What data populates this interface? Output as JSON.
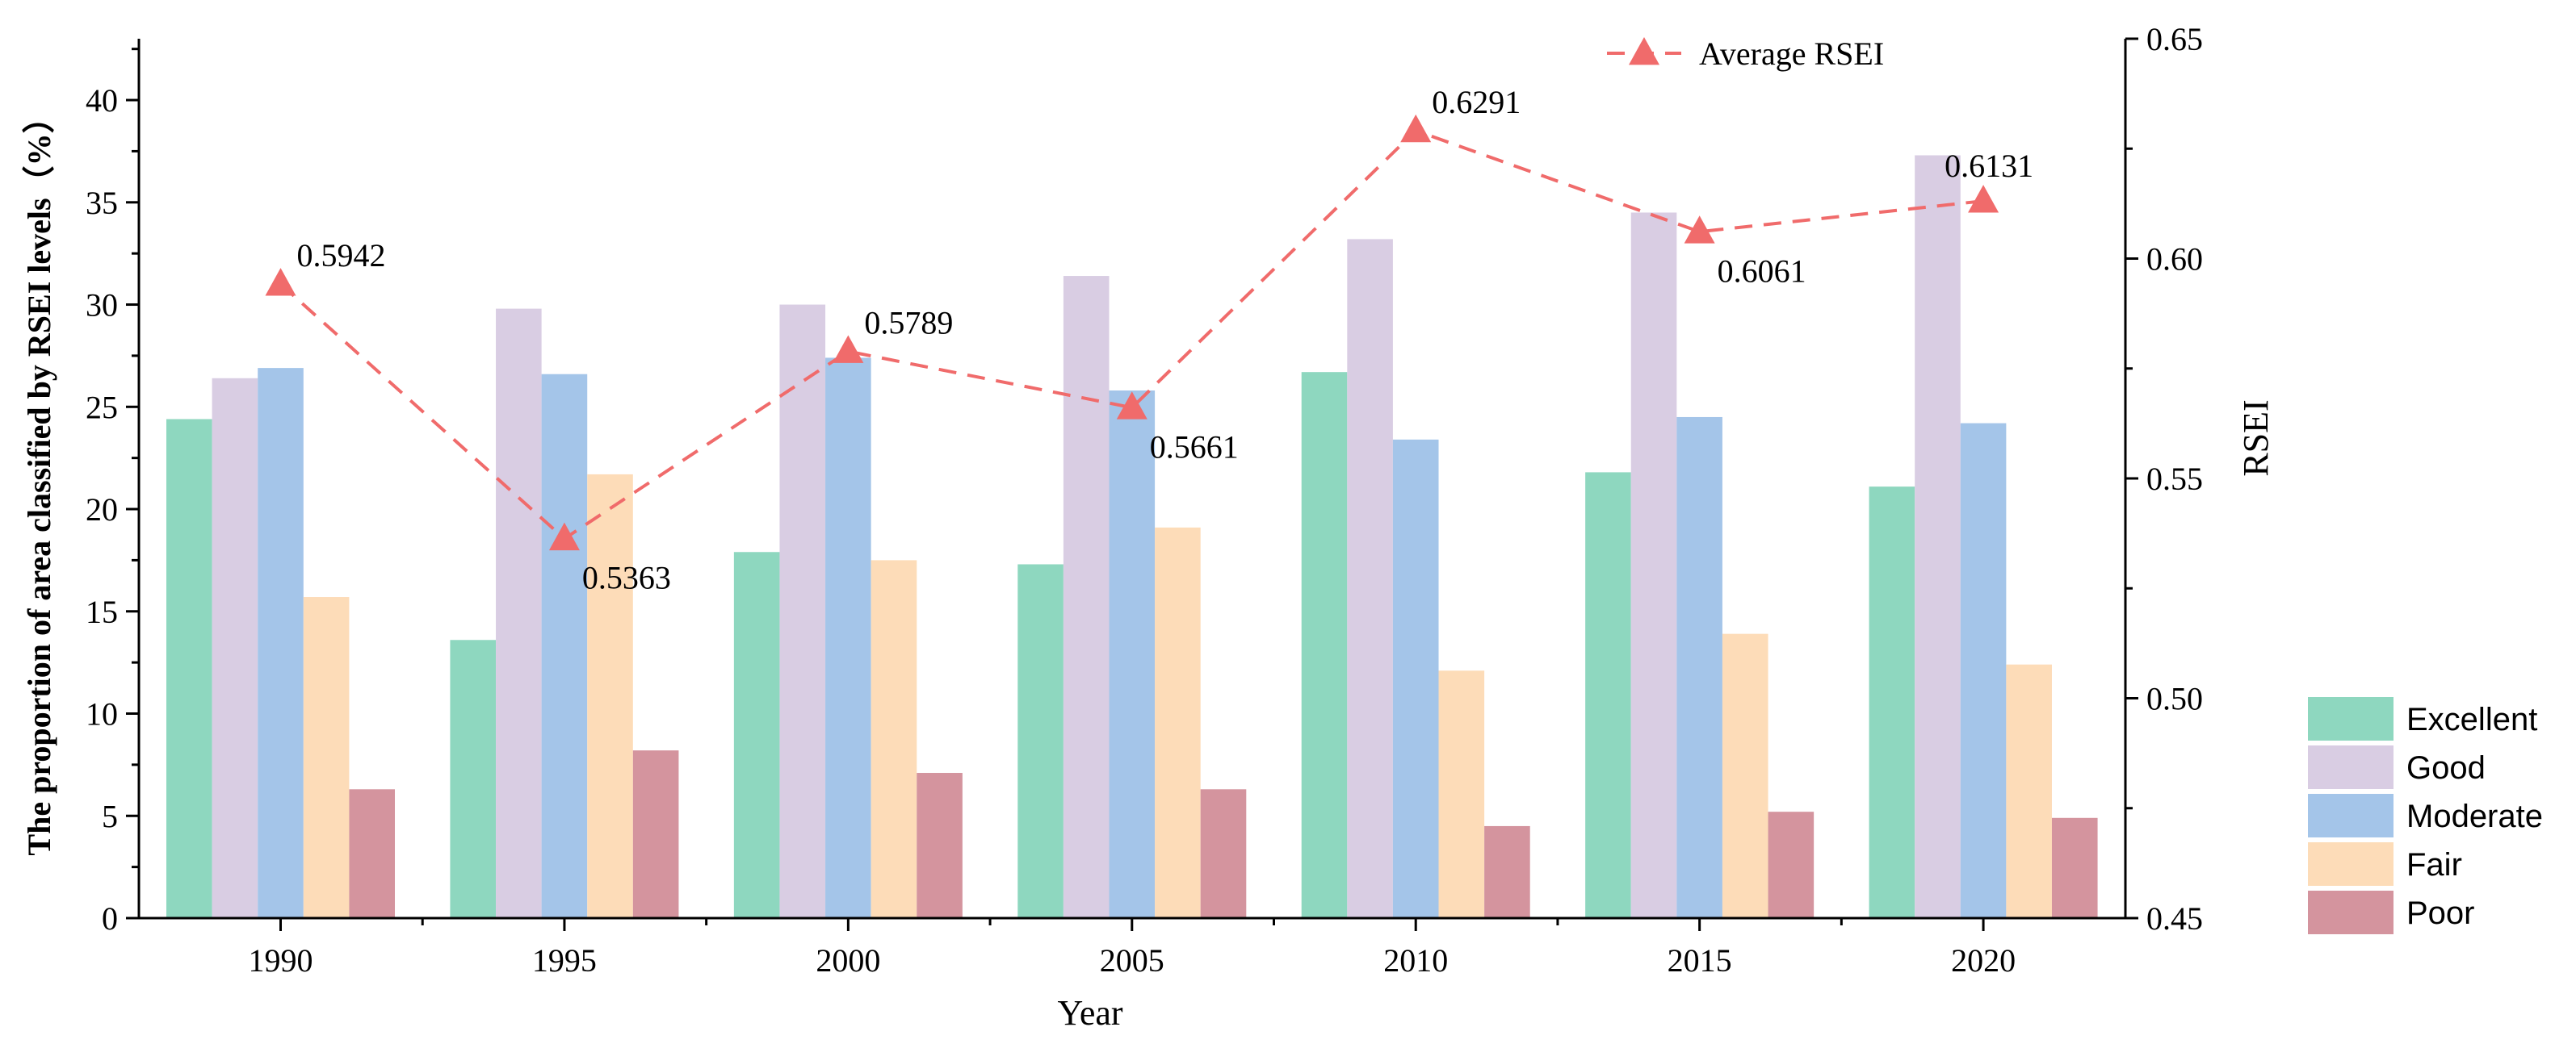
{
  "chart_data": {
    "type": "bar",
    "categories": [
      "1990",
      "1995",
      "2000",
      "2005",
      "2010",
      "2015",
      "2020"
    ],
    "xlabel": "Year",
    "ylabel": "The proportion of area classified by RSEI levels（%）",
    "ylim": [
      0,
      43
    ],
    "yticks": [
      "0",
      "5",
      "10",
      "15",
      "20",
      "25",
      "30",
      "35",
      "40"
    ],
    "series": [
      {
        "name": "Excellent",
        "color": "#8ED7BF",
        "values": [
          24.4,
          13.6,
          17.9,
          17.3,
          26.7,
          21.8,
          21.1
        ]
      },
      {
        "name": "Good",
        "color": "#D9CDE3",
        "values": [
          26.4,
          29.8,
          30.0,
          31.4,
          33.2,
          34.5,
          37.3
        ]
      },
      {
        "name": "Moderate",
        "color": "#A4C5E9",
        "values": [
          26.9,
          26.6,
          27.4,
          25.8,
          23.4,
          24.5,
          24.2
        ]
      },
      {
        "name": "Fair",
        "color": "#FDDCB8",
        "values": [
          15.7,
          21.7,
          17.5,
          19.1,
          12.1,
          13.9,
          12.4
        ]
      },
      {
        "name": "Poor",
        "color": "#D4949E",
        "values": [
          6.3,
          8.2,
          7.1,
          6.3,
          4.5,
          5.2,
          4.9
        ]
      }
    ],
    "secondary_axis": {
      "label": "RSEI",
      "ylim": [
        0.45,
        0.65
      ],
      "yticks": [
        "0.45",
        "0.50",
        "0.55",
        "0.60",
        "0.65"
      ]
    },
    "line_series": {
      "name": "Average RSEI",
      "color": "#F06B6B",
      "values": [
        0.5942,
        0.5363,
        0.5789,
        0.5661,
        0.6291,
        0.6061,
        0.6131
      ],
      "labels": [
        "0.5942",
        "0.5363",
        "0.5789",
        "0.5661",
        "0.6291",
        "0.6061",
        "0.6131"
      ],
      "label_positions": [
        "upper-right",
        "lower-right",
        "upper-right",
        "lower-right",
        "upper-right",
        "lower-right",
        "upper-left"
      ]
    },
    "legend": {
      "line_position": "top",
      "bars_position": "right"
    }
  }
}
